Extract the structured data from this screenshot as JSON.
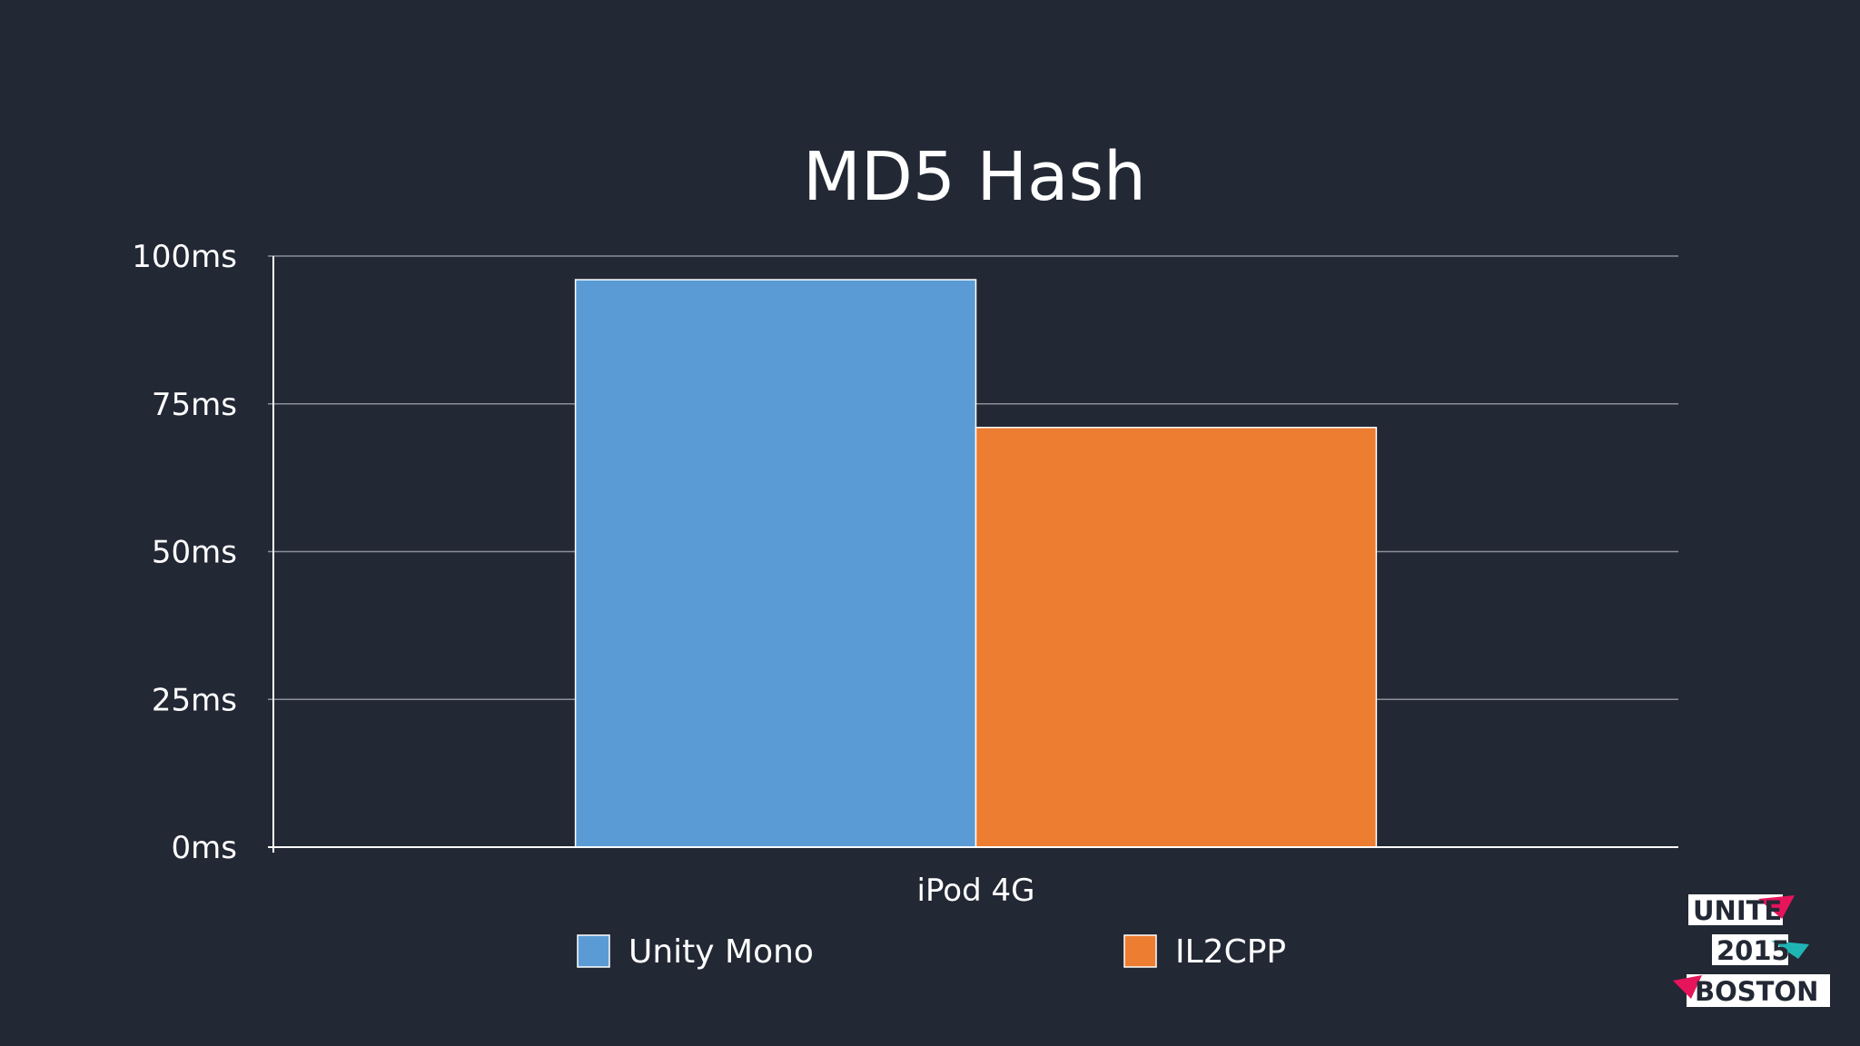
{
  "chart_data": {
    "type": "bar",
    "title": "MD5 Hash",
    "xlabel": "",
    "ylabel": "",
    "categories": [
      "iPod 4G"
    ],
    "series": [
      {
        "name": "Unity Mono",
        "values": [
          96
        ],
        "color": "#5b9bd5"
      },
      {
        "name": "IL2CPP",
        "values": [
          71
        ],
        "color": "#ed7d31"
      }
    ],
    "ylim": [
      0,
      100
    ],
    "yticks": [
      0,
      25,
      50,
      75,
      100
    ],
    "ytick_labels": [
      "0ms",
      "25ms",
      "50ms",
      "75ms",
      "100ms"
    ],
    "grid": true,
    "legend_position": "bottom"
  },
  "logo": {
    "line1": "UNITE",
    "line2": "2015",
    "line3": "BOSTON",
    "accent_pink": "#e6145a",
    "accent_teal": "#1fb5b5"
  },
  "colors": {
    "background": "#232835",
    "text": "#ffffff",
    "grid": "#8a8f99"
  }
}
